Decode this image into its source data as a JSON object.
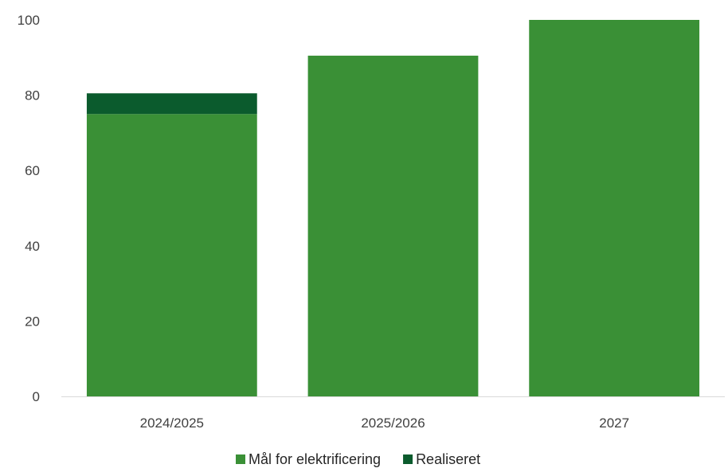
{
  "chart_data": {
    "type": "bar",
    "stacked": true,
    "categories": [
      "2024/2025",
      "2025/2026",
      "2027"
    ],
    "series": [
      {
        "name": "Mål for elektrificering",
        "values": [
          75,
          90.5,
          100
        ],
        "color": "#3a9036"
      },
      {
        "name": "Realiseret",
        "values": [
          5.5,
          0,
          0
        ],
        "color": "#0b5b2d"
      }
    ],
    "ylim": [
      0,
      100
    ],
    "yticks": [
      0,
      20,
      40,
      60,
      80,
      100
    ],
    "grid": false,
    "legend": "bottom",
    "xlabel": "",
    "ylabel": "",
    "title": ""
  }
}
